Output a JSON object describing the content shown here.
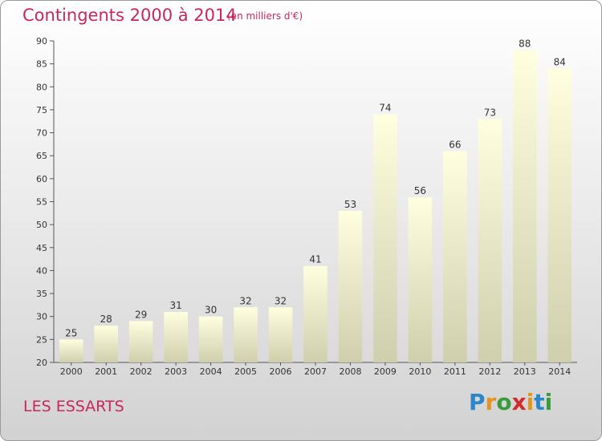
{
  "header": {
    "title": "Contingents 2000 à 2014",
    "subtitle": "(en milliers d'€)"
  },
  "footer": {
    "place": "LES ESSARTS",
    "brand": [
      "P",
      "r",
      "o",
      "x",
      "i",
      "t",
      "i"
    ],
    "brand_colors": [
      "#2a87c9",
      "#e39424",
      "#3b9a3e",
      "#d02c2c",
      "#e39424",
      "#2a87c9",
      "#3b9a3e"
    ]
  },
  "colors": {
    "bar_top": "#ffffe0",
    "bar_bottom": "#cfcfae",
    "text_accent": "#c8275a"
  },
  "chart_data": {
    "type": "bar",
    "title": "Contingents 2000 à 2014",
    "subtitle": "(en milliers d'€)",
    "xlabel": "",
    "ylabel": "",
    "categories": [
      "2000",
      "2001",
      "2002",
      "2003",
      "2004",
      "2005",
      "2006",
      "2007",
      "2008",
      "2009",
      "2010",
      "2011",
      "2012",
      "2013",
      "2014"
    ],
    "values": [
      25,
      28,
      29,
      31,
      30,
      32,
      32,
      41,
      53,
      74,
      56,
      66,
      73,
      88,
      84
    ],
    "ylim": [
      20,
      90
    ],
    "yticks": [
      20,
      25,
      30,
      35,
      40,
      45,
      50,
      55,
      60,
      65,
      70,
      75,
      80,
      85,
      90
    ],
    "grid": false,
    "legend": "none",
    "data_labels": true
  }
}
